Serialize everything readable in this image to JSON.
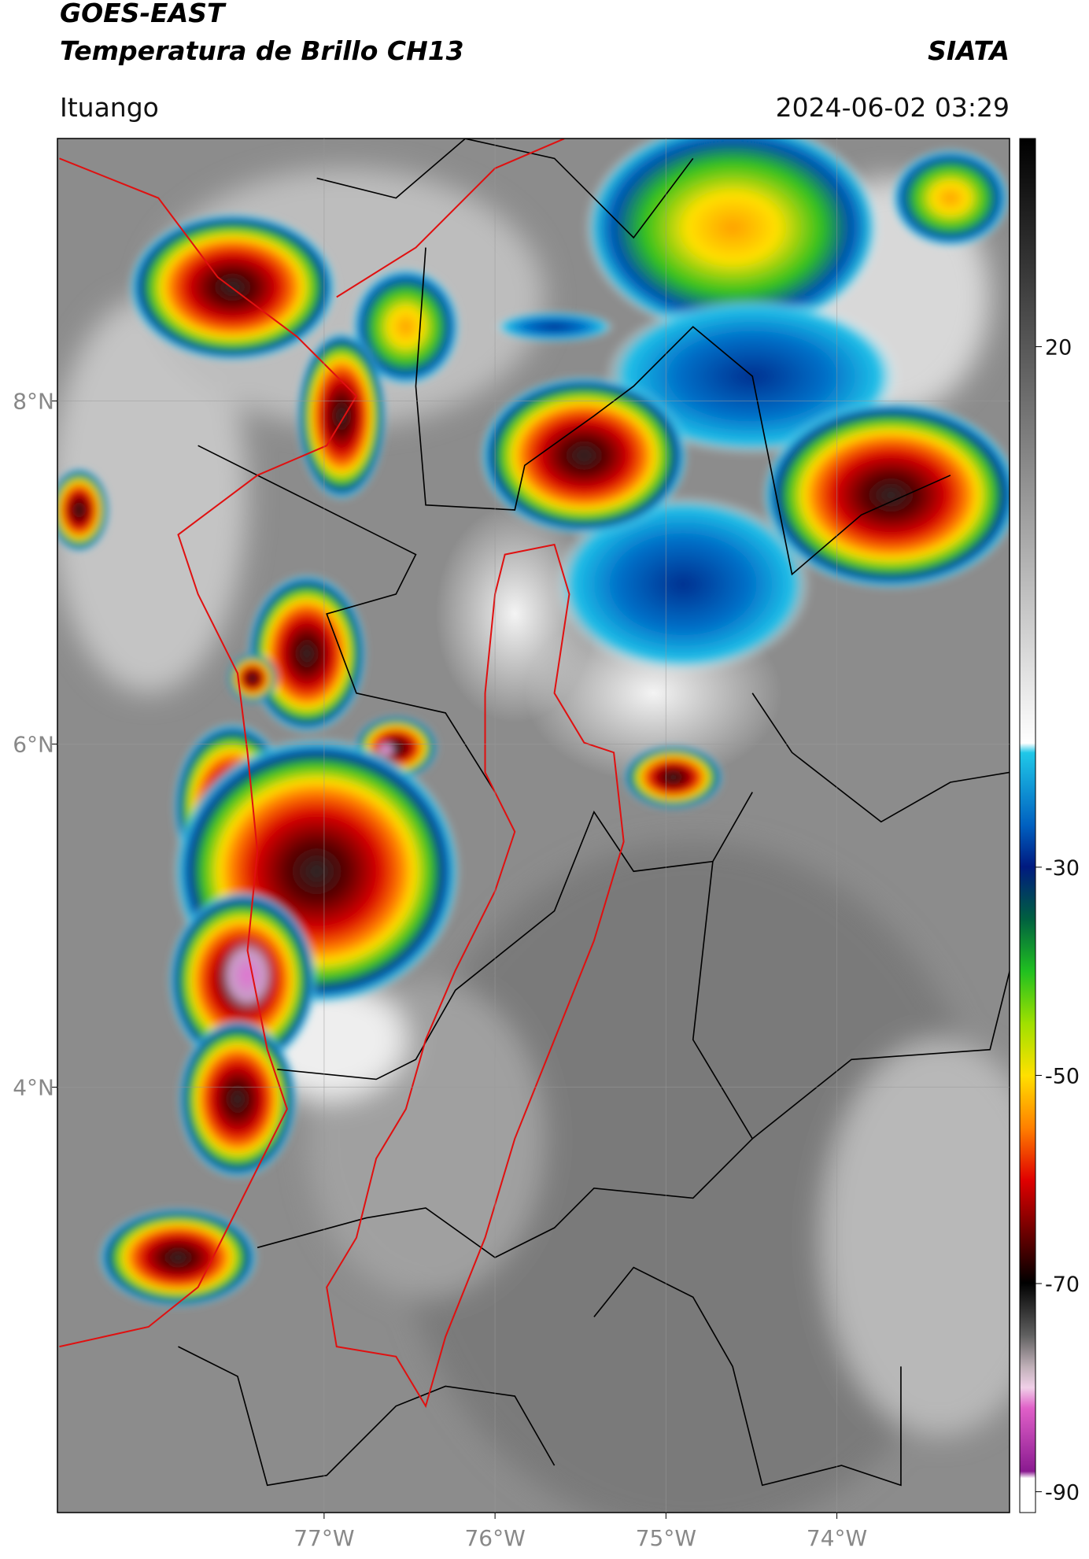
{
  "header": {
    "title": "GOES-EAST",
    "subtitle": "Temperatura de Brillo CH13",
    "agency": "SIATA",
    "location": "Ituango",
    "datetime": "2024-06-02 03:29"
  },
  "map": {
    "xlim": [
      -78.56,
      -72.99
    ],
    "ylim": [
      1.52,
      9.53
    ],
    "xticks": [
      {
        "value": -77,
        "label": "77°W"
      },
      {
        "value": -76,
        "label": "76°W"
      },
      {
        "value": -75,
        "label": "75°W"
      },
      {
        "value": -74,
        "label": "74°W"
      }
    ],
    "yticks": [
      {
        "value": 8,
        "label": "8°N"
      },
      {
        "value": 6,
        "label": "6°N"
      },
      {
        "value": 4,
        "label": "4°N"
      }
    ],
    "grid": true
  },
  "colorbar": {
    "lim": [
      -92,
      40
    ],
    "ticks": [
      20,
      -30,
      -50,
      -70,
      -90
    ]
  }
}
